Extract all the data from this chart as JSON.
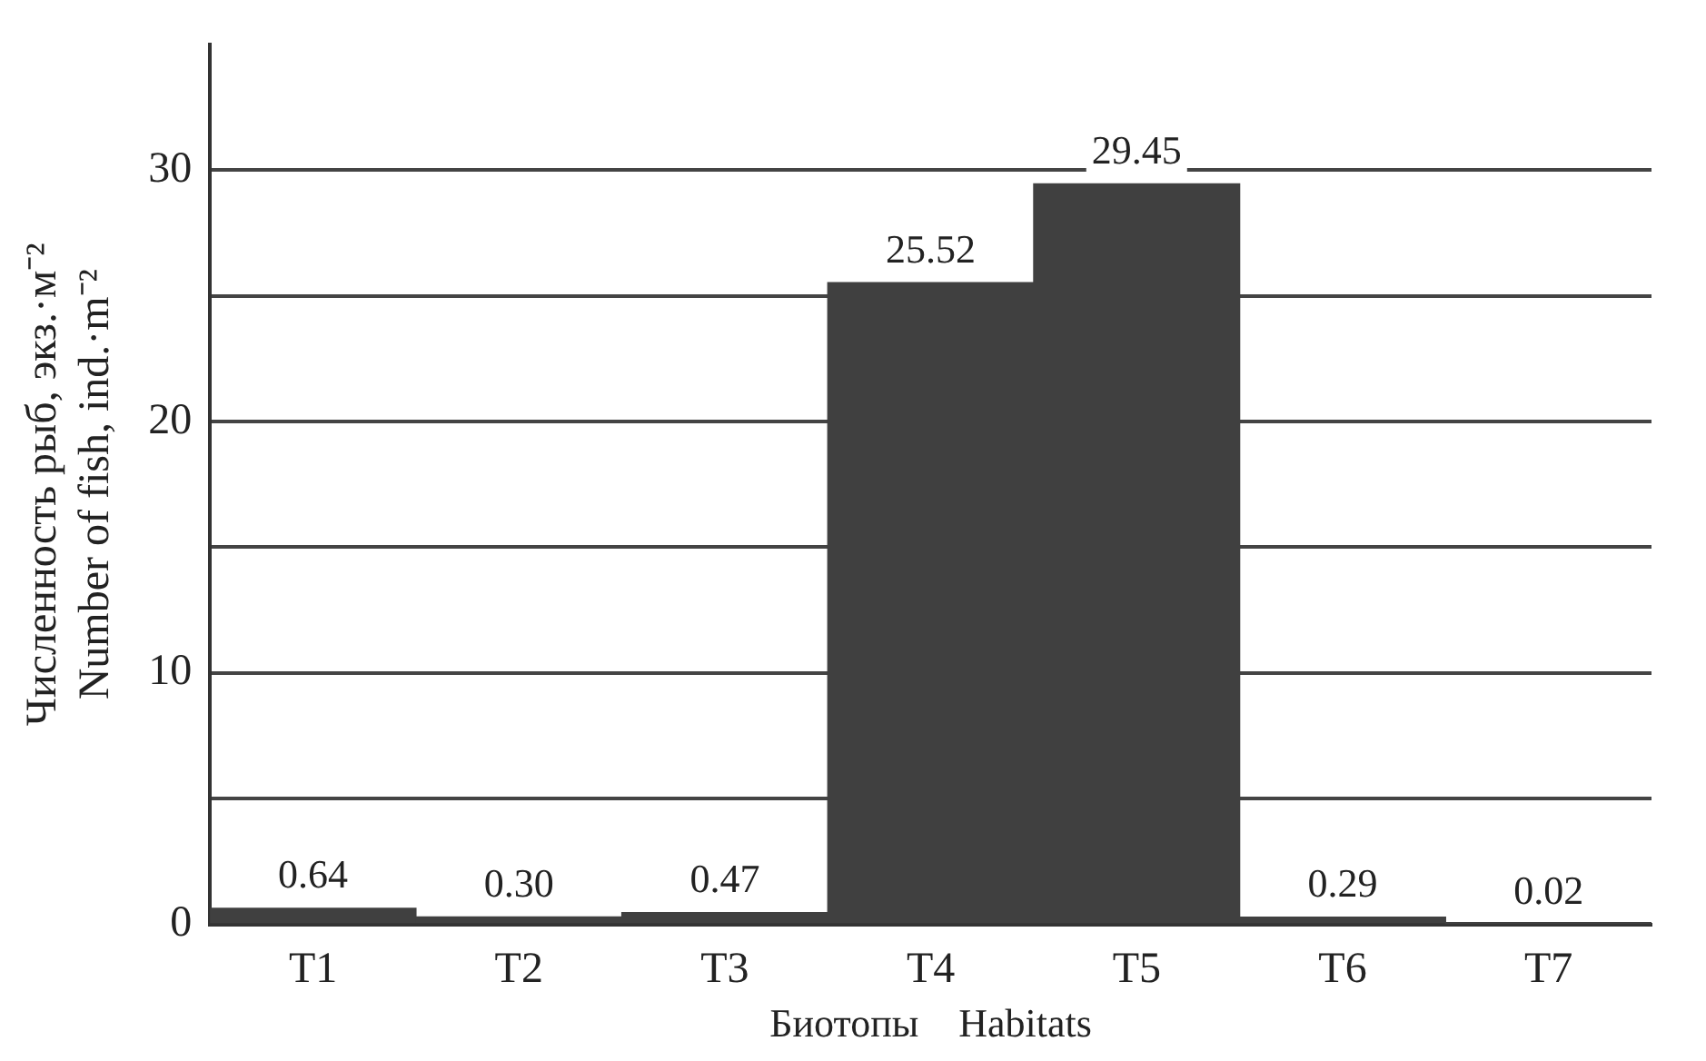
{
  "chart_data": {
    "type": "bar",
    "categories": [
      "T1",
      "T2",
      "T3",
      "T4",
      "T5",
      "T6",
      "T7"
    ],
    "values": [
      0.64,
      0.3,
      0.47,
      25.52,
      29.45,
      0.29,
      0.02
    ],
    "value_labels": [
      "0.64",
      "0.30",
      "0.47",
      "25.52",
      "29.45",
      "0.29",
      "0.02"
    ],
    "color": "#404040",
    "ylabel": "Численность рыб, экз.·м⁻²\nNumber of fish, ind.·m⁻²",
    "xlabel": "Биотопы    Habitats",
    "ylim": [
      0,
      35
    ],
    "yticks": [
      0,
      {
        "value": 5,
        "label": null
      },
      10,
      {
        "value": 15,
        "label": null
      },
      20,
      {
        "value": 25,
        "label": null
      },
      30
    ],
    "grid": "y",
    "legend": false
  }
}
